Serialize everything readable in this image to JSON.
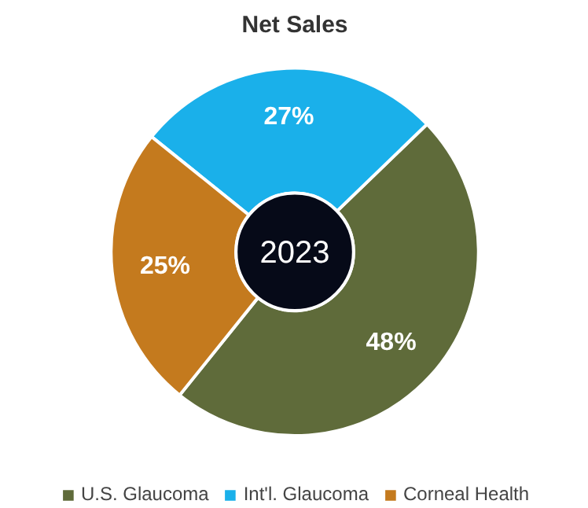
{
  "chart_data": {
    "type": "donut",
    "title": "Net Sales",
    "categories": [
      "U.S. Glaucoma",
      "Int'l. Glaucoma",
      "Corneal Health"
    ],
    "values": [
      48,
      27,
      25
    ],
    "colors": [
      "#5f6b3a",
      "#1ab0ea",
      "#c47a1e"
    ],
    "value_labels": [
      "48%",
      "27%",
      "25%"
    ],
    "annotations": [
      "2023"
    ],
    "legend": "bottom"
  }
}
